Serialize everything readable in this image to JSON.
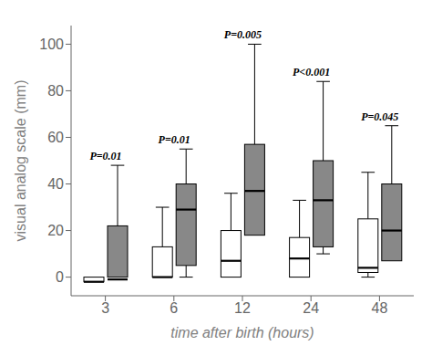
{
  "chart_data": {
    "type": "box",
    "xlabel": "time after birth (hours)",
    "ylabel": "visual analog scale (mm)",
    "categories": [
      3,
      6,
      12,
      24,
      48
    ],
    "ylim": [
      -8,
      108
    ],
    "yticks": [
      0,
      20,
      40,
      60,
      80,
      100
    ],
    "grid": false,
    "series": [
      {
        "color": "#ffffff",
        "values": [
          {
            "whislo": -2,
            "q1": -2,
            "med": -2,
            "q3": 0,
            "whishi": 0
          },
          {
            "whislo": 0,
            "q1": 0,
            "med": 0,
            "q3": 13,
            "whishi": 30
          },
          {
            "whislo": 0,
            "q1": 0,
            "med": 7,
            "q3": 20,
            "whishi": 36
          },
          {
            "whislo": 0,
            "q1": 0,
            "med": 8,
            "q3": 17,
            "whishi": 33
          },
          {
            "whislo": 0,
            "q1": 2,
            "med": 4,
            "q3": 25,
            "whishi": 45
          }
        ]
      },
      {
        "color": "#888888",
        "values": [
          {
            "whislo": 0,
            "q1": 0,
            "med": -1,
            "q3": 22,
            "whishi": 48
          },
          {
            "whislo": 0,
            "q1": 5,
            "med": 29,
            "q3": 40,
            "whishi": 55
          },
          {
            "whislo": 18,
            "q1": 18,
            "med": 37,
            "q3": 57,
            "whishi": 100
          },
          {
            "whislo": 10,
            "q1": 13,
            "med": 33,
            "q3": 50,
            "whishi": 84
          },
          {
            "whislo": 7,
            "q1": 7,
            "med": 20,
            "q3": 40,
            "whishi": 65
          }
        ]
      }
    ],
    "annotations": [
      "P=0.01",
      "P=0.01",
      "P=0.005",
      "P<0.001",
      "P=0.045"
    ]
  }
}
